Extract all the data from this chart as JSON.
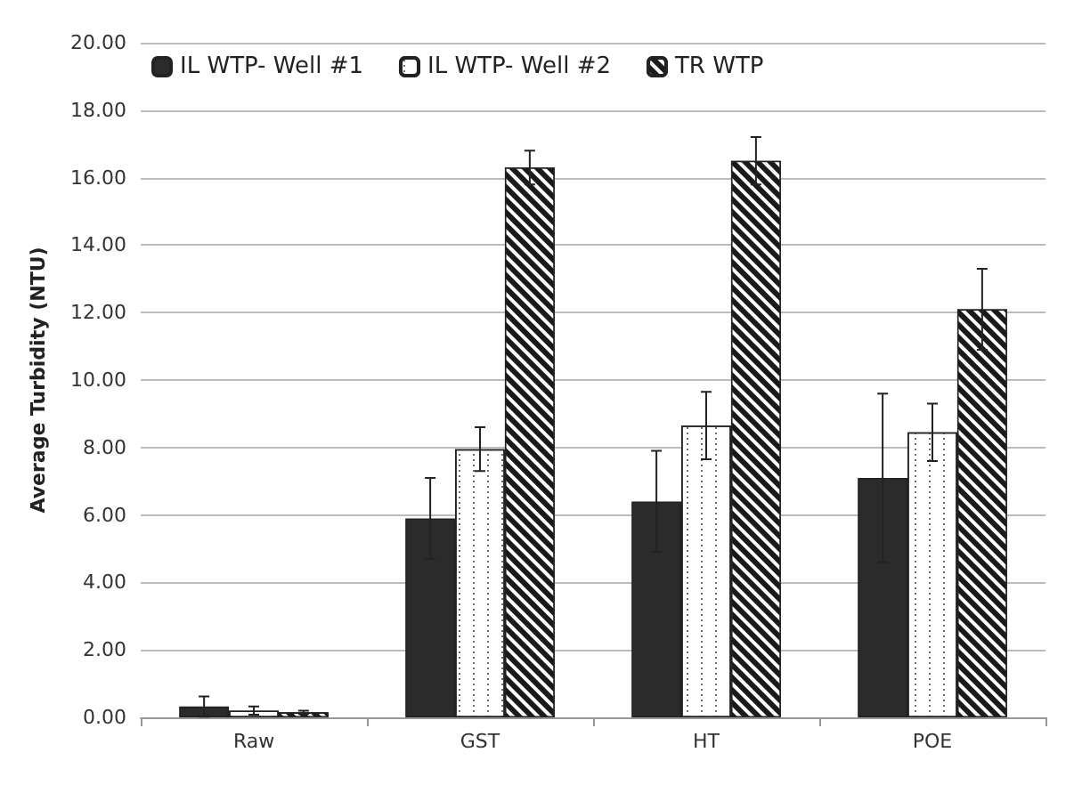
{
  "chart_data": {
    "type": "bar",
    "ylabel": "Average Turbidity (NTU)",
    "categories": [
      "Raw",
      "GST",
      "HT",
      "POE"
    ],
    "series": [
      {
        "name": "IL WTP- Well #1",
        "color": "#2b2b2b",
        "values": [
          0.32,
          5.9,
          6.4,
          7.1
        ],
        "errors": [
          0.3,
          1.2,
          1.5,
          2.5
        ]
      },
      {
        "name": "IL WTP- Well #2",
        "color": "#ffffff",
        "values": [
          0.2,
          7.95,
          8.65,
          8.45
        ],
        "errors": [
          0.12,
          0.65,
          1.0,
          0.85
        ]
      },
      {
        "name": "TR WTP",
        "color": "#1a1a1a",
        "values": [
          0.15,
          16.3,
          16.5,
          12.1
        ],
        "errors": [
          0.05,
          0.5,
          0.7,
          1.2
        ]
      }
    ],
    "ylim": [
      0,
      20
    ],
    "yticks": [
      {
        "value": 0,
        "label": "0.00"
      },
      {
        "value": 2,
        "label": "2.00"
      },
      {
        "value": 4,
        "label": "4.00"
      },
      {
        "value": 6,
        "label": "6.00"
      },
      {
        "value": 8,
        "label": "8.00"
      },
      {
        "value": 10,
        "label": "10.00"
      },
      {
        "value": 12,
        "label": "12.00"
      },
      {
        "value": 14,
        "label": "14.00"
      },
      {
        "value": 16,
        "label": "16.00"
      },
      {
        "value": 18,
        "label": "18.00"
      },
      {
        "value": 20,
        "label": "20.00"
      }
    ],
    "grid": "y",
    "legend": "top left"
  }
}
